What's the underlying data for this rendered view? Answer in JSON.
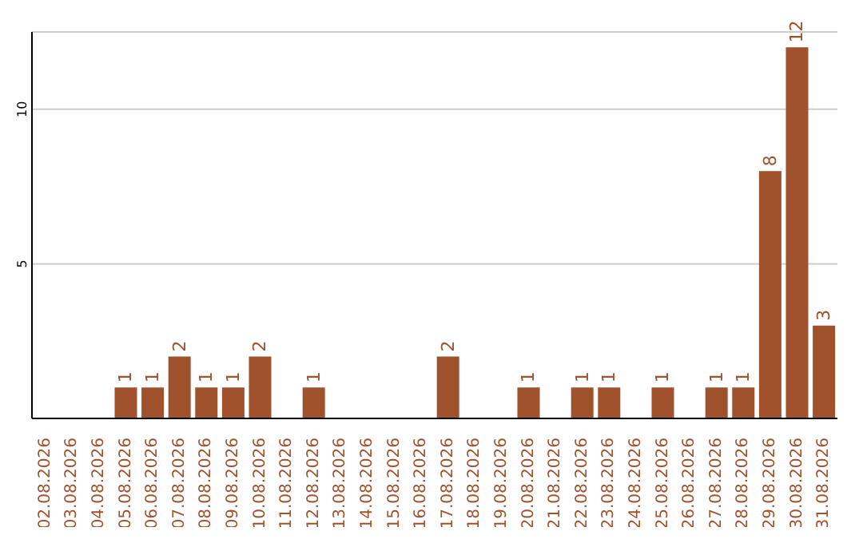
{
  "chart_data": {
    "type": "bar",
    "categories": [
      "02.08.2026",
      "03.08.2026",
      "04.08.2026",
      "05.08.2026",
      "06.08.2026",
      "07.08.2026",
      "08.08.2026",
      "09.08.2026",
      "10.08.2026",
      "11.08.2026",
      "12.08.2026",
      "13.08.2026",
      "14.08.2026",
      "15.08.2026",
      "16.08.2026",
      "17.08.2026",
      "18.08.2026",
      "19.08.2026",
      "20.08.2026",
      "21.08.2026",
      "22.08.2026",
      "23.08.2026",
      "24.08.2026",
      "25.08.2026",
      "26.08.2026",
      "27.08.2026",
      "28.08.2026",
      "29.08.2026",
      "30.08.2026",
      "31.08.2026"
    ],
    "values": [
      0,
      0,
      0,
      1,
      1,
      2,
      1,
      1,
      2,
      0,
      1,
      0,
      0,
      0,
      0,
      2,
      0,
      0,
      1,
      0,
      1,
      1,
      0,
      1,
      0,
      1,
      1,
      8,
      12,
      3
    ],
    "value_labels": [
      null,
      null,
      null,
      "1",
      "1",
      "2",
      "1",
      "1",
      "2",
      null,
      "1",
      null,
      null,
      null,
      null,
      "2",
      null,
      null,
      "1",
      null,
      "1",
      "1",
      null,
      "1",
      null,
      "1",
      "1",
      "8",
      "12",
      "3"
    ],
    "color": "#a0522d",
    "ylim": [
      0,
      12.5
    ],
    "yticks": [
      5,
      10
    ],
    "grid": "y"
  }
}
